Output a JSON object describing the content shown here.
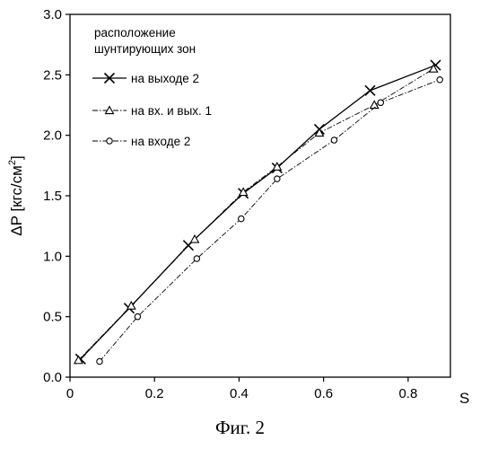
{
  "caption": "Фиг. 2",
  "chart_data": {
    "type": "line",
    "xlabel": "S",
    "ylabel_main": "ΔP [кгс/см",
    "ylabel_sup": "2",
    "ylabel_end": "]",
    "xlim": [
      0,
      0.9
    ],
    "ylim": [
      0.0,
      3.0
    ],
    "x_ticks": [
      "0",
      "0.2",
      "0.4",
      "0.6",
      "0.8"
    ],
    "y_ticks": [
      "0.0",
      "0.5",
      "1.0",
      "1.5",
      "2.0",
      "2.5",
      "3.0"
    ],
    "grid": false,
    "legend": {
      "title_line1": "расположение",
      "title_line2": "шунтирующих зон",
      "placement": "top-left"
    },
    "series": [
      {
        "name": "на выходе 2",
        "marker": "x",
        "line": "solid",
        "points": [
          [
            0.025,
            0.15
          ],
          [
            0.14,
            0.57
          ],
          [
            0.28,
            1.09
          ],
          [
            0.41,
            1.52
          ],
          [
            0.49,
            1.73
          ],
          [
            0.59,
            2.05
          ],
          [
            0.71,
            2.37
          ],
          [
            0.865,
            2.58
          ]
        ]
      },
      {
        "name": "на вх. и вых. 1",
        "marker": "triangle",
        "line": "dashdot",
        "points": [
          [
            0.02,
            0.14
          ],
          [
            0.145,
            0.59
          ],
          [
            0.295,
            1.14
          ],
          [
            0.41,
            1.53
          ],
          [
            0.49,
            1.74
          ],
          [
            0.59,
            2.02
          ],
          [
            0.72,
            2.25
          ],
          [
            0.86,
            2.55
          ]
        ]
      },
      {
        "name": "на входе 2",
        "marker": "circle",
        "line": "dashdot",
        "points": [
          [
            0.07,
            0.13
          ],
          [
            0.16,
            0.5
          ],
          [
            0.3,
            0.98
          ],
          [
            0.405,
            1.31
          ],
          [
            0.49,
            1.64
          ],
          [
            0.625,
            1.96
          ],
          [
            0.735,
            2.27
          ],
          [
            0.875,
            2.46
          ]
        ]
      }
    ]
  }
}
